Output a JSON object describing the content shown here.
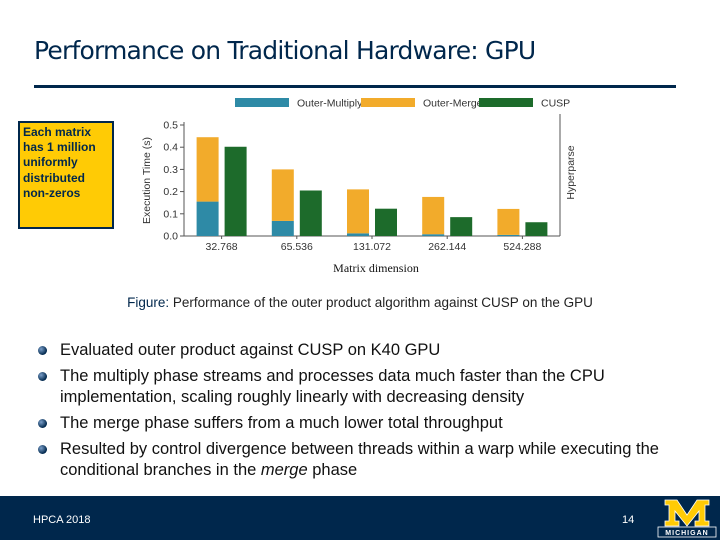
{
  "slide": {
    "title": "Performance on Traditional Hardware: GPU",
    "callout_lines": [
      "Each matrix",
      "has 1 million",
      "uniformly",
      "distributed",
      "non-zeros"
    ],
    "caption_prefix": "Figure:",
    "caption_text": " Performance of the outer product algorithm against CUSP on the GPU",
    "bullets": [
      {
        "text": "Evaluated outer product against CUSP on K40 GPU"
      },
      {
        "text": "The multiply phase streams and processes data much faster than the CPU implementation, scaling roughly linearly with decreasing density"
      },
      {
        "text": "The merge phase suffers from a much lower total throughput"
      },
      {
        "text_before": "Resulted by control divergence between threads within a warp while executing the conditional branches in the ",
        "text_em": "merge",
        "text_after": " phase"
      }
    ],
    "footer_left": "HPCA 2018",
    "page_number": "14",
    "logo_text": "MICHIGAN",
    "colors": {
      "navy": "#00274c",
      "maize": "#ffcb05"
    }
  },
  "chart_data": {
    "type": "bar",
    "stacked_series": [
      "Outer-Multiply",
      "Outer-Merge"
    ],
    "categories": [
      "32.768",
      "65.536",
      "131.072",
      "262.144",
      "524.288"
    ],
    "series": [
      {
        "name": "Outer-Multiply",
        "color": "#2e8aa6",
        "values": [
          0.155,
          0.068,
          0.012,
          0.008,
          0.005
        ]
      },
      {
        "name": "Outer-Merge",
        "color": "#f2ab2b",
        "values": [
          0.29,
          0.232,
          0.198,
          0.168,
          0.117
        ]
      },
      {
        "name": "CUSP",
        "color": "#1d6b2b",
        "values": [
          0.402,
          0.205,
          0.123,
          0.085,
          0.062
        ]
      }
    ],
    "xlabel": "Matrix dimension",
    "ylabel": "Execution Time (s)",
    "ylim": [
      0,
      0.5
    ],
    "yticks": [
      "0.0",
      "0.1",
      "0.2",
      "0.3",
      "0.4",
      "0.5"
    ],
    "annotation": "Hyperparse",
    "legend_position": "top",
    "grid": false
  }
}
